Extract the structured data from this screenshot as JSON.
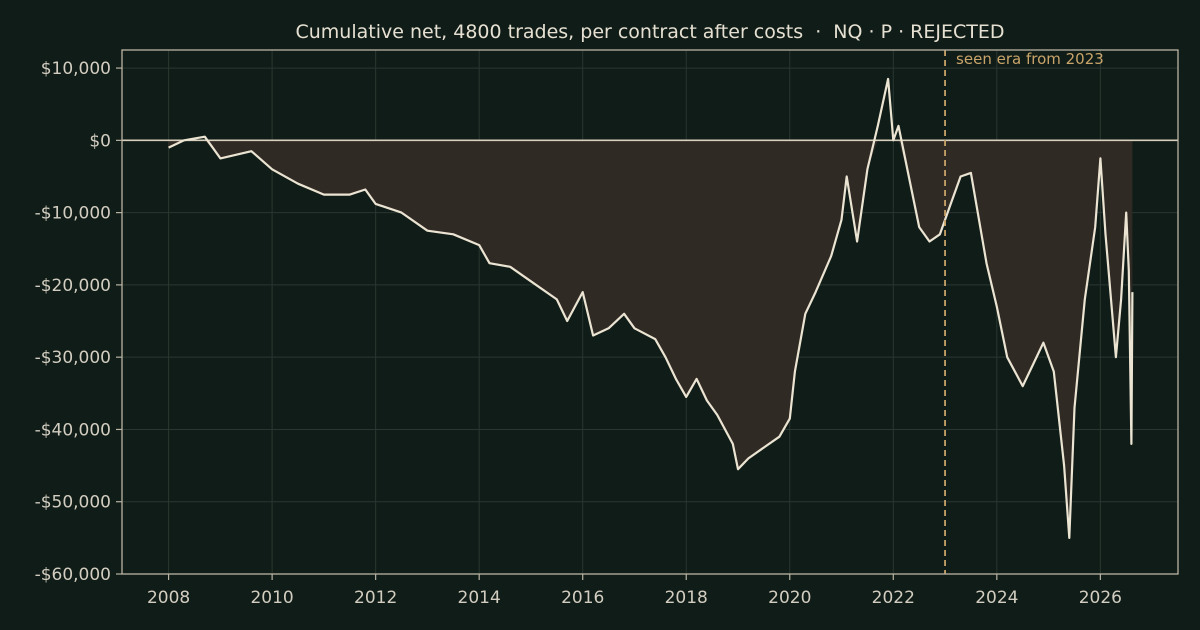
{
  "chart_data": {
    "type": "line",
    "title": "Cumulative net, 4800 trades, per contract after costs  ·  NQ · P · REJECTED",
    "xlabel": "",
    "ylabel": "",
    "xlim": [
      2007.1,
      2027.5
    ],
    "ylim": [
      -60000,
      12500
    ],
    "x_ticks": [
      2008,
      2010,
      2012,
      2014,
      2016,
      2018,
      2020,
      2022,
      2024,
      2026
    ],
    "x_tick_labels": [
      "2008",
      "2010",
      "2012",
      "2014",
      "2016",
      "2018",
      "2020",
      "2022",
      "2024",
      "2026"
    ],
    "y_ticks": [
      10000,
      0,
      -10000,
      -20000,
      -30000,
      -40000,
      -50000,
      -60000
    ],
    "y_tick_labels": [
      "$10,000",
      "$0",
      "-$10,000",
      "-$20,000",
      "-$30,000",
      "-$40,000",
      "-$50,000",
      "-$60,000"
    ],
    "grid": true,
    "zero_line": 0,
    "annotation": {
      "x": 2023.0,
      "text": "seen era from 2023"
    },
    "colors": {
      "background": "#101c17",
      "line": "#ece4d2",
      "fill": "#302a25",
      "annotation": "#c9a46a",
      "axis": "#b9b3a4",
      "grid": "#2a3631"
    },
    "series": [
      {
        "points": [
          [
            2008.0,
            -1000
          ],
          [
            2008.3,
            0
          ],
          [
            2008.7,
            500
          ],
          [
            2009.0,
            -2500
          ],
          [
            2009.3,
            -2000
          ],
          [
            2009.6,
            -1500
          ],
          [
            2010.0,
            -4000
          ],
          [
            2010.5,
            -6000
          ],
          [
            2011.0,
            -7500
          ],
          [
            2011.5,
            -7500
          ],
          [
            2011.8,
            -6800
          ],
          [
            2012.0,
            -8800
          ],
          [
            2012.5,
            -10000
          ],
          [
            2013.0,
            -12500
          ],
          [
            2013.5,
            -13000
          ],
          [
            2014.0,
            -14500
          ],
          [
            2014.2,
            -17000
          ],
          [
            2014.6,
            -17500
          ],
          [
            2015.0,
            -19500
          ],
          [
            2015.5,
            -22000
          ],
          [
            2015.7,
            -25000
          ],
          [
            2016.0,
            -21000
          ],
          [
            2016.2,
            -27000
          ],
          [
            2016.5,
            -26000
          ],
          [
            2016.8,
            -24000
          ],
          [
            2017.0,
            -26000
          ],
          [
            2017.4,
            -27500
          ],
          [
            2017.6,
            -30000
          ],
          [
            2017.8,
            -33000
          ],
          [
            2018.0,
            -35500
          ],
          [
            2018.2,
            -33000
          ],
          [
            2018.4,
            -36000
          ],
          [
            2018.6,
            -38000
          ],
          [
            2018.9,
            -42000
          ],
          [
            2019.0,
            -45500
          ],
          [
            2019.2,
            -44000
          ],
          [
            2019.5,
            -42500
          ],
          [
            2019.8,
            -41000
          ],
          [
            2020.0,
            -38500
          ],
          [
            2020.1,
            -32000
          ],
          [
            2020.3,
            -24000
          ],
          [
            2020.5,
            -21000
          ],
          [
            2020.8,
            -16000
          ],
          [
            2021.0,
            -11000
          ],
          [
            2021.1,
            -5000
          ],
          [
            2021.3,
            -14000
          ],
          [
            2021.5,
            -4000
          ],
          [
            2021.7,
            2000
          ],
          [
            2021.9,
            8500
          ],
          [
            2022.0,
            0
          ],
          [
            2022.1,
            2000
          ],
          [
            2022.3,
            -5000
          ],
          [
            2022.5,
            -12000
          ],
          [
            2022.7,
            -14000
          ],
          [
            2022.9,
            -13000
          ],
          [
            2023.1,
            -9000
          ],
          [
            2023.3,
            -5000
          ],
          [
            2023.5,
            -4500
          ],
          [
            2023.8,
            -17000
          ],
          [
            2024.0,
            -23000
          ],
          [
            2024.2,
            -30000
          ],
          [
            2024.5,
            -34000
          ],
          [
            2024.7,
            -31000
          ],
          [
            2024.9,
            -28000
          ],
          [
            2025.1,
            -32000
          ],
          [
            2025.3,
            -45000
          ],
          [
            2025.4,
            -55000
          ],
          [
            2025.5,
            -37000
          ],
          [
            2025.7,
            -22000
          ],
          [
            2025.9,
            -12000
          ],
          [
            2026.0,
            -2500
          ],
          [
            2026.1,
            -13000
          ],
          [
            2026.3,
            -30000
          ],
          [
            2026.4,
            -22000
          ],
          [
            2026.5,
            -10000
          ],
          [
            2026.55,
            -18000
          ],
          [
            2026.6,
            -42000
          ],
          [
            2026.62,
            -21000
          ]
        ]
      }
    ]
  }
}
